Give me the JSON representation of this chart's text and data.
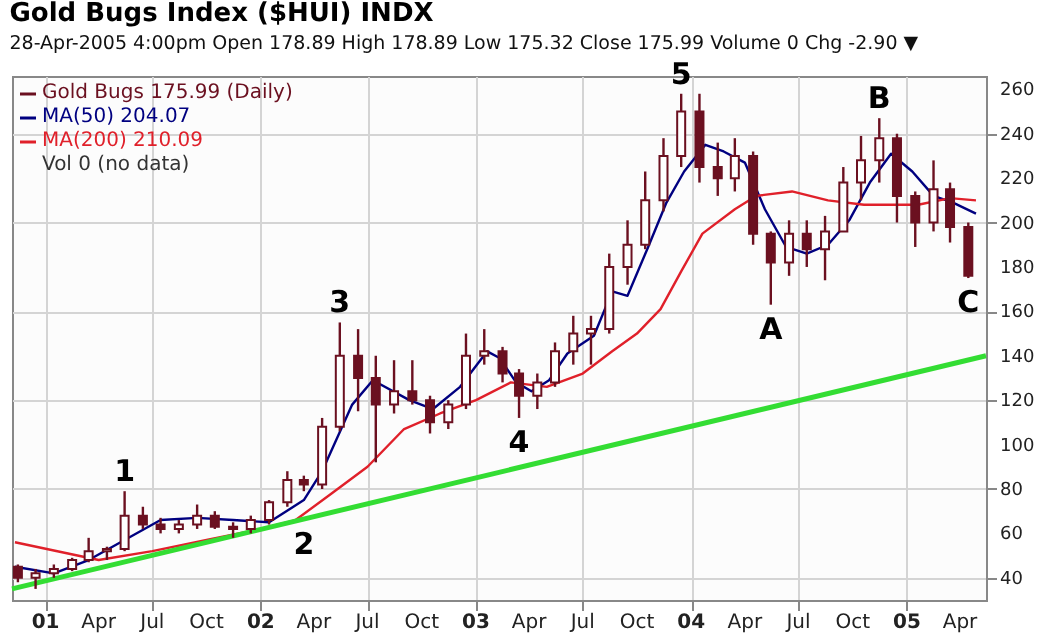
{
  "chart_data": {
    "type": "candlestick",
    "title": "Gold Bugs Index ($HUI) INDX",
    "subtitle": "28-Apr-2005 4:00pm  Open 178.89 High 178.89 Low 175.32 Close 175.99 Volume 0 Chg -2.90 ▼",
    "xlim": [
      "2000-11-05",
      "2005-05-15"
    ],
    "xticks": [
      {
        "value": "2001-01-01",
        "label": "01"
      },
      {
        "value": "2001-04-01",
        "label": "Apr"
      },
      {
        "value": "2001-07-01",
        "label": "Jul"
      },
      {
        "value": "2001-10-01",
        "label": "Oct"
      },
      {
        "value": "2002-01-01",
        "label": "02"
      },
      {
        "value": "2002-04-01",
        "label": "Apr"
      },
      {
        "value": "2002-07-01",
        "label": "Jul"
      },
      {
        "value": "2002-10-01",
        "label": "Oct"
      },
      {
        "value": "2003-01-01",
        "label": "03"
      },
      {
        "value": "2003-04-01",
        "label": "Apr"
      },
      {
        "value": "2003-07-01",
        "label": "Jul"
      },
      {
        "value": "2003-10-01",
        "label": "Oct"
      },
      {
        "value": "2004-01-01",
        "label": "04"
      },
      {
        "value": "2004-04-01",
        "label": "Apr"
      },
      {
        "value": "2004-07-01",
        "label": "Jul"
      },
      {
        "value": "2004-10-01",
        "label": "Oct"
      },
      {
        "value": "2005-01-01",
        "label": "05"
      },
      {
        "value": "2005-04-01",
        "label": "Apr"
      }
    ],
    "ylim": [
      30,
      266
    ],
    "yticks": [
      40,
      60,
      80,
      100,
      120,
      140,
      160,
      180,
      200,
      220,
      240,
      260
    ],
    "grid": true,
    "legend": "top left",
    "series": [
      {
        "name": "Gold Bugs 175.99 (Daily)",
        "type": "candlestick",
        "color": "#6b1020",
        "x": [
          "2000-11-15",
          "2000-12-15",
          "2001-01-15",
          "2001-02-15",
          "2001-03-15",
          "2001-04-15",
          "2001-05-15",
          "2001-06-15",
          "2001-07-15",
          "2001-08-15",
          "2001-09-15",
          "2001-10-15",
          "2001-11-15",
          "2001-12-15",
          "2002-01-15",
          "2002-02-15",
          "2002-03-15",
          "2002-04-15",
          "2002-05-15",
          "2002-06-15",
          "2002-07-15",
          "2002-08-15",
          "2002-09-15",
          "2002-10-15",
          "2002-11-15",
          "2002-12-15",
          "2003-01-15",
          "2003-02-15",
          "2003-03-15",
          "2003-04-15",
          "2003-05-15",
          "2003-06-15",
          "2003-07-15",
          "2003-08-15",
          "2003-09-15",
          "2003-10-15",
          "2003-11-15",
          "2003-12-15",
          "2004-01-15",
          "2004-02-15",
          "2004-03-15",
          "2004-04-15",
          "2004-05-15",
          "2004-06-15",
          "2004-07-15",
          "2004-08-15",
          "2004-09-15",
          "2004-10-15",
          "2004-11-15",
          "2004-12-15",
          "2005-01-15",
          "2005-02-15",
          "2005-03-15",
          "2005-04-15"
        ],
        "ohlc": [
          [
            45,
            46,
            38,
            40
          ],
          [
            40,
            44,
            35,
            42
          ],
          [
            42,
            46,
            40,
            44
          ],
          [
            44,
            49,
            43,
            48
          ],
          [
            48,
            58,
            47,
            52
          ],
          [
            52,
            54,
            48,
            53
          ],
          [
            53,
            79,
            52,
            68
          ],
          [
            68,
            72,
            62,
            64
          ],
          [
            64,
            67,
            60,
            62
          ],
          [
            62,
            66,
            60,
            64
          ],
          [
            64,
            73,
            62,
            68
          ],
          [
            68,
            70,
            62,
            63
          ],
          [
            63,
            65,
            58,
            62
          ],
          [
            62,
            68,
            60,
            66
          ],
          [
            66,
            75,
            64,
            74
          ],
          [
            74,
            88,
            72,
            84
          ],
          [
            84,
            86,
            79,
            82
          ],
          [
            82,
            112,
            80,
            108
          ],
          [
            108,
            155,
            106,
            140
          ],
          [
            140,
            152,
            115,
            130
          ],
          [
            130,
            140,
            92,
            118
          ],
          [
            118,
            138,
            114,
            124
          ],
          [
            124,
            138,
            118,
            120
          ],
          [
            120,
            122,
            105,
            110
          ],
          [
            110,
            120,
            107,
            118
          ],
          [
            118,
            150,
            116,
            140
          ],
          [
            140,
            152,
            136,
            142
          ],
          [
            142,
            144,
            128,
            132
          ],
          [
            132,
            134,
            112,
            122
          ],
          [
            122,
            132,
            116,
            128
          ],
          [
            128,
            146,
            126,
            142
          ],
          [
            142,
            158,
            136,
            150
          ],
          [
            150,
            158,
            136,
            152
          ],
          [
            152,
            186,
            150,
            180
          ],
          [
            180,
            201,
            172,
            190
          ],
          [
            190,
            223,
            188,
            210
          ],
          [
            210,
            238,
            205,
            230
          ],
          [
            230,
            258,
            225,
            250
          ],
          [
            250,
            258,
            218,
            225
          ],
          [
            225,
            236,
            212,
            220
          ],
          [
            220,
            238,
            214,
            230
          ],
          [
            230,
            232,
            190,
            195
          ],
          [
            195,
            196,
            163,
            182
          ],
          [
            182,
            201,
            176,
            195
          ],
          [
            195,
            201,
            180,
            188
          ],
          [
            188,
            203,
            174,
            196
          ],
          [
            196,
            225,
            196,
            218
          ],
          [
            218,
            239,
            210,
            228
          ],
          [
            228,
            247,
            218,
            238
          ],
          [
            238,
            240,
            200,
            212
          ],
          [
            212,
            214,
            189,
            200
          ],
          [
            200,
            228,
            196,
            215
          ],
          [
            215,
            218,
            191,
            198
          ],
          [
            198,
            200,
            175,
            176
          ]
        ]
      },
      {
        "name": "MA(50) 204.07",
        "type": "line",
        "color": "#000080",
        "x": [
          "2000-11-10",
          "2001-01-15",
          "2001-03-15",
          "2001-05-15",
          "2001-07-15",
          "2001-09-15",
          "2001-11-15",
          "2002-01-15",
          "2002-03-15",
          "2002-04-15",
          "2002-06-05",
          "2002-07-10",
          "2002-09-10",
          "2002-10-20",
          "2002-12-05",
          "2003-01-20",
          "2003-02-10",
          "2003-03-10",
          "2003-04-05",
          "2003-05-05",
          "2003-06-05",
          "2003-07-20",
          "2003-08-20",
          "2003-09-15",
          "2003-10-20",
          "2003-11-20",
          "2003-12-20",
          "2004-01-25",
          "2004-02-25",
          "2004-04-01",
          "2004-05-05",
          "2004-06-10",
          "2004-07-15",
          "2004-08-20",
          "2004-09-25",
          "2004-10-30",
          "2004-12-05",
          "2005-01-10",
          "2005-02-15",
          "2005-03-20",
          "2005-04-28"
        ],
        "values": [
          45,
          42,
          48,
          57,
          66,
          67,
          66,
          65,
          75,
          88,
          118,
          129,
          120,
          116,
          126,
          142,
          139,
          128,
          124,
          129,
          141,
          149,
          169,
          167,
          189,
          209,
          223,
          235,
          232,
          227,
          206,
          189,
          186,
          190,
          201,
          218,
          231,
          223,
          212,
          209,
          204
        ]
      },
      {
        "name": "MA(200) 210.09",
        "type": "line",
        "color": "#e0202a",
        "x": [
          "2000-11-10",
          "2001-04-01",
          "2001-07-01",
          "2001-10-01",
          "2002-01-01",
          "2002-03-01",
          "2002-05-01",
          "2002-07-01",
          "2002-09-01",
          "2002-11-01",
          "2003-01-01",
          "2003-03-01",
          "2003-05-01",
          "2003-07-01",
          "2003-08-20",
          "2003-10-01",
          "2003-11-10",
          "2003-12-15",
          "2004-01-20",
          "2004-03-15",
          "2004-04-20",
          "2004-06-20",
          "2004-08-20",
          "2004-10-20",
          "2004-11-30",
          "2005-01-20",
          "2005-03-15",
          "2005-04-28"
        ],
        "values": [
          56,
          48,
          52,
          57,
          62,
          66,
          78,
          90,
          107,
          114,
          120,
          128,
          126,
          132,
          142,
          150,
          161,
          178,
          195,
          206,
          212,
          214,
          210,
          208,
          208,
          208,
          211,
          210
        ]
      },
      {
        "type": "line",
        "color": "#33dd33",
        "x": [
          "2000-11-05",
          "2005-05-15"
        ],
        "values": [
          35,
          140
        ]
      }
    ],
    "annotations": [
      "Vol 0 (no data)",
      {
        "text": "1",
        "x": "2001-05-15",
        "y": 79
      },
      {
        "text": "2",
        "x": "2002-03-15",
        "y": 66
      },
      {
        "text": "3",
        "x": "2002-05-15",
        "y": 155
      },
      {
        "text": "4",
        "x": "2003-03-15",
        "y": 112
      },
      {
        "text": "5",
        "x": "2003-12-15",
        "y": 258
      },
      {
        "text": "A",
        "x": "2004-05-15",
        "y": 163
      },
      {
        "text": "B",
        "x": "2004-11-15",
        "y": 247
      },
      {
        "text": "C",
        "x": "2005-04-15",
        "y": 175
      }
    ]
  }
}
